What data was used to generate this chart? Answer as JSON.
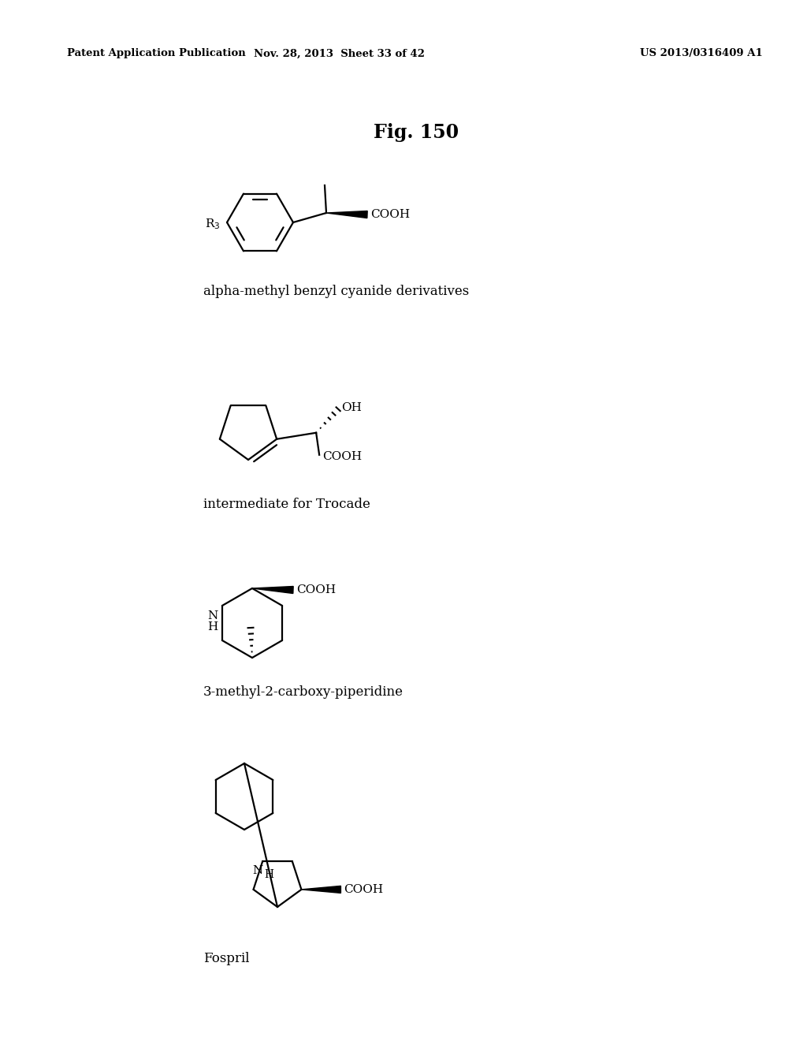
{
  "title": "Fig. 150",
  "header_left": "Patent Application Publication",
  "header_middle": "Nov. 28, 2013  Sheet 33 of 42",
  "header_right": "US 2013/0316409 A1",
  "bg_color": "#ffffff",
  "line_color": "#000000",
  "label1": "alpha-methyl benzyl cyanide derivatives",
  "label2": "intermediate for Trocade",
  "label3": "3-methyl-2-carboxy-piperidine",
  "label4": "Fospril"
}
